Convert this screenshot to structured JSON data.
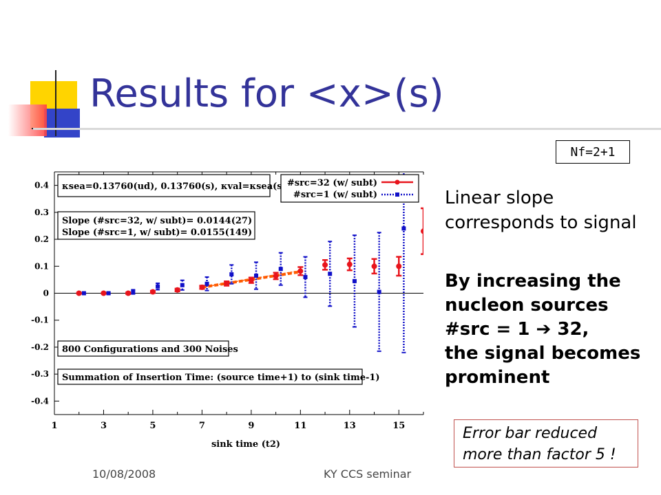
{
  "slide": {
    "title": "Results for <x>(s)",
    "nf_label": "Nf=2+1",
    "text_block_1": [
      "Linear slope",
      "corresponds to signal"
    ],
    "text_block_2": [
      "By increasing the",
      "nucleon sources",
      "#src = 1 ➔ 32,",
      "the signal becomes",
      "prominent"
    ],
    "callout": [
      "Error bar reduced",
      "more than factor 5 !"
    ],
    "footer_date": "10/08/2008",
    "footer_center": "KY CCS seminar",
    "colors": {
      "title": "#333399",
      "red": "#e8141c",
      "blue": "#1010c8",
      "fit": "#ff5a00"
    }
  },
  "chart_data": {
    "type": "scatter",
    "xlabel": "sink time (t2)",
    "ylabel": "",
    "xlim": [
      1,
      16
    ],
    "ylim": [
      -0.45,
      0.45
    ],
    "xticks": [
      1,
      3,
      5,
      7,
      9,
      11,
      13,
      15
    ],
    "yticks": [
      0.4,
      0.3,
      0.2,
      0.1,
      0,
      -0.1,
      -0.2,
      -0.3,
      -0.4
    ],
    "annotations": [
      "κsea=0.13760(ud), 0.13760(s), κval=κsea(s)",
      "Slope (#src=32, w/ subt)= 0.0144(27)",
      "Slope (#src=1,   w/ subt)= 0.0155(149)",
      "800 Configurations and 300 Noises",
      "Summation of Insertion Time: (source time+1) to (sink time-1)"
    ],
    "legend_position": "top-right",
    "series": [
      {
        "name": "#src=32 (w/ subt)",
        "color": "#e8141c",
        "x": [
          2,
          3,
          4,
          5,
          6,
          7,
          8,
          9,
          10,
          11,
          12,
          13,
          14,
          15,
          16
        ],
        "y": [
          0.0,
          0.0,
          0.0,
          0.005,
          0.012,
          0.022,
          0.036,
          0.048,
          0.064,
          0.082,
          0.105,
          0.107,
          0.1,
          0.1,
          0.23
        ],
        "err": [
          0.002,
          0.002,
          0.003,
          0.004,
          0.005,
          0.006,
          0.008,
          0.01,
          0.012,
          0.015,
          0.018,
          0.022,
          0.027,
          0.035,
          0.085
        ]
      },
      {
        "name": "#src=1 (w/ subt)",
        "color": "#1010c8",
        "x": [
          2.2,
          3.2,
          4.2,
          5.2,
          6.2,
          7.2,
          8.2,
          9.2,
          10.2,
          11.2,
          12.2,
          13.2,
          14.2,
          15.2
        ],
        "y": [
          0.0,
          0.0,
          0.005,
          0.025,
          0.03,
          0.035,
          0.07,
          0.065,
          0.09,
          0.06,
          0.072,
          0.045,
          0.005,
          0.24
        ],
        "err": [
          0.002,
          0.004,
          0.008,
          0.012,
          0.018,
          0.025,
          0.035,
          0.05,
          0.06,
          0.075,
          0.12,
          0.17,
          0.22,
          0.46
        ]
      }
    ],
    "fit_lines": [
      {
        "series": "#src=32 (w/ subt)",
        "slope": 0.0144,
        "x_range": [
          7,
          11
        ]
      },
      {
        "series": "#src=1 (w/ subt)",
        "slope": 0.0155,
        "x_range": [
          7,
          11
        ]
      }
    ]
  }
}
